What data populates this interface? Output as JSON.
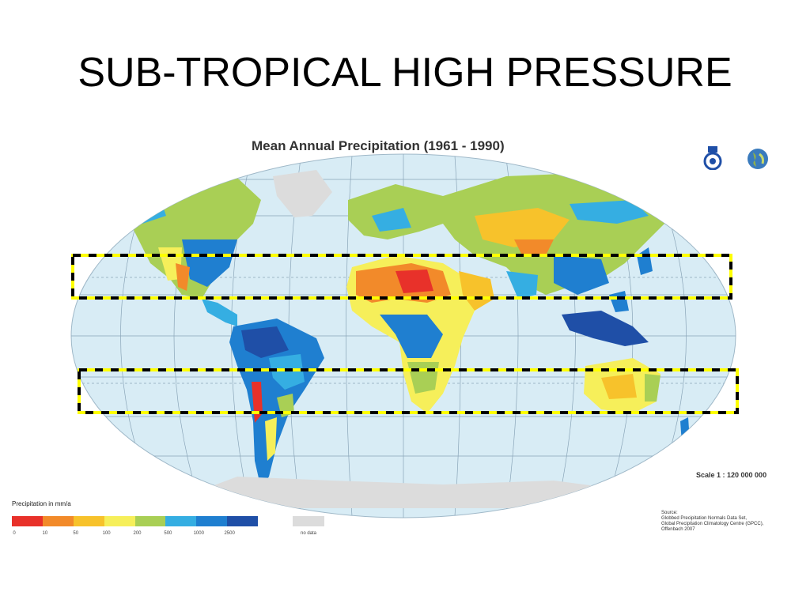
{
  "slide": {
    "title": "SUB-TROPICAL HIGH PRESSURE"
  },
  "map": {
    "title": "Mean Annual Precipitation (1961 - 1990)",
    "scale": "Scale   1 : 120 000 000",
    "ocean_color": "#d8ecf5",
    "highlight_color": "#ffff00",
    "highlight_count": 2
  },
  "legend": {
    "title": "Precipitation in mm/a",
    "colors": [
      "#e8312a",
      "#f28a2a",
      "#f7c22b",
      "#f6ef5a",
      "#a9cf55",
      "#35aee2",
      "#1f7fd0",
      "#1f4fa7"
    ],
    "ticks": [
      "0",
      "10",
      "50",
      "100",
      "200",
      "500",
      "1000",
      "2500"
    ],
    "no_data_label": "no data",
    "no_data_color": "#dcdcdc"
  },
  "source": {
    "lines": [
      "Source:",
      "Globbed Precipitation Normals Data Set,",
      "Global Precipitation Climatology Centre (GPCC),",
      "Offenbach 2007"
    ]
  },
  "logos": [
    "gpcc-logo-icon",
    "globe-icon"
  ]
}
